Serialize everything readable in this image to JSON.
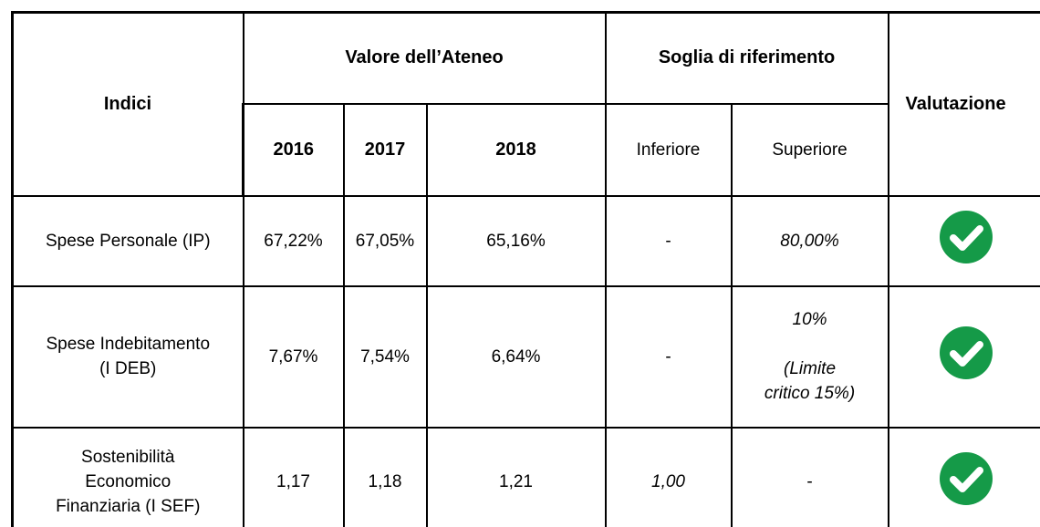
{
  "table": {
    "header": {
      "indici": "Indici",
      "valore": "Valore dell’Ateneo",
      "soglia": "Soglia di riferimento",
      "valutazione": "Valutazione",
      "years": [
        "2016",
        "2017",
        "2018"
      ],
      "soglia_cols": [
        "Inferiore",
        "Superiore"
      ]
    },
    "rows": [
      {
        "label": [
          [
            "Spese Personale (IP)"
          ]
        ],
        "values": [
          "67,22%",
          "67,05%",
          "65,16%"
        ],
        "inferiore": [
          [
            "-"
          ]
        ],
        "superiore": [
          [
            "80,00%"
          ]
        ]
      },
      {
        "label": [
          [
            "Spese Indebitamento",
            "(I DEB)"
          ]
        ],
        "values": [
          "7,67%",
          "7,54%",
          "6,64%"
        ],
        "inferiore": [
          [
            "-"
          ]
        ],
        "superiore": [
          [
            "10%"
          ],
          [
            "(Limite",
            "critico 15%)"
          ]
        ]
      },
      {
        "label": [
          [
            "Sostenibilità",
            "Economico",
            "Finanziaria (I SEF)"
          ]
        ],
        "values": [
          "1,17",
          "1,18",
          "1,21"
        ],
        "inferiore": [
          [
            "1,00"
          ]
        ],
        "superiore": [
          [
            "-"
          ]
        ]
      }
    ]
  }
}
